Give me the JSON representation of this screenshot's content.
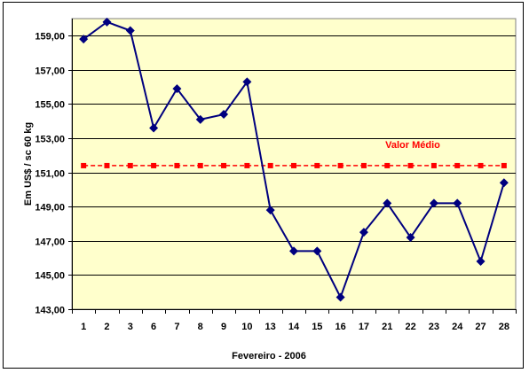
{
  "chart_data": {
    "type": "line",
    "title": "",
    "xlabel": "Fevereiro - 2006",
    "ylabel": "Em US$ / sc 60 kg",
    "categories": [
      "1",
      "2",
      "3",
      "6",
      "7",
      "8",
      "9",
      "10",
      "13",
      "14",
      "15",
      "16",
      "17",
      "21",
      "22",
      "23",
      "24",
      "27",
      "28"
    ],
    "series": [
      {
        "values": [
          158.8,
          159.8,
          159.3,
          153.6,
          155.9,
          154.1,
          154.4,
          156.3,
          148.8,
          146.4,
          146.4,
          143.7,
          147.5,
          149.2,
          147.2,
          149.2,
          149.2,
          145.8,
          150.4
        ],
        "color": "#00007f",
        "marker": "diamond"
      },
      {
        "name": "Valor Médio",
        "values": [
          151.4,
          151.4,
          151.4,
          151.4,
          151.4,
          151.4,
          151.4,
          151.4,
          151.4,
          151.4,
          151.4,
          151.4,
          151.4,
          151.4,
          151.4,
          151.4,
          151.4,
          151.4,
          151.4
        ],
        "color": "#ff0000",
        "marker": "square"
      }
    ],
    "yticks": [
      "143,00",
      "145,00",
      "147,00",
      "149,00",
      "151,00",
      "153,00",
      "155,00",
      "157,00",
      "159,00"
    ],
    "ylim": [
      143,
      160
    ],
    "grid": "horizontal",
    "annotation": "Valor Médio",
    "plot_background": "#ffffcc"
  }
}
